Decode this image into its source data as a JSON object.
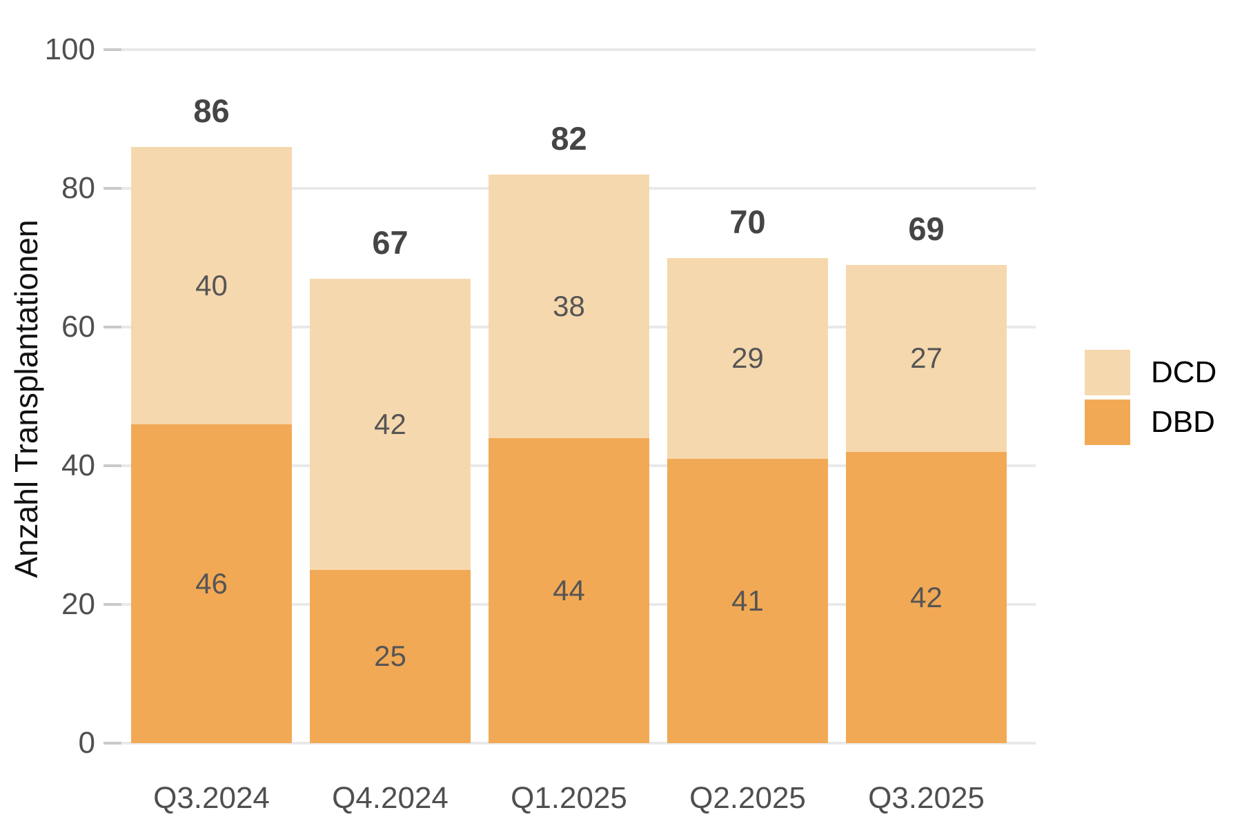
{
  "chart_data": {
    "type": "bar",
    "stacked": true,
    "title": "",
    "xlabel": "",
    "ylabel": "Anzahl Transplantationen",
    "categories": [
      "Q3.2024",
      "Q4.2024",
      "Q1.2025",
      "Q2.2025",
      "Q3.2025"
    ],
    "series": [
      {
        "name": "DBD",
        "color": "#F2A955",
        "values": [
          46,
          25,
          44,
          41,
          42
        ]
      },
      {
        "name": "DCD",
        "color": "#F6D8AE",
        "values": [
          40,
          42,
          38,
          29,
          27
        ]
      }
    ],
    "totals": [
      86,
      67,
      82,
      70,
      69
    ],
    "ylim": [
      0,
      100
    ],
    "yticks": [
      0,
      20,
      40,
      60,
      80,
      100
    ],
    "grid": true,
    "legend": {
      "position": "right",
      "items": [
        {
          "label": "DCD",
          "color": "#F6D8AE"
        },
        {
          "label": "DBD",
          "color": "#F2A955"
        }
      ]
    }
  }
}
